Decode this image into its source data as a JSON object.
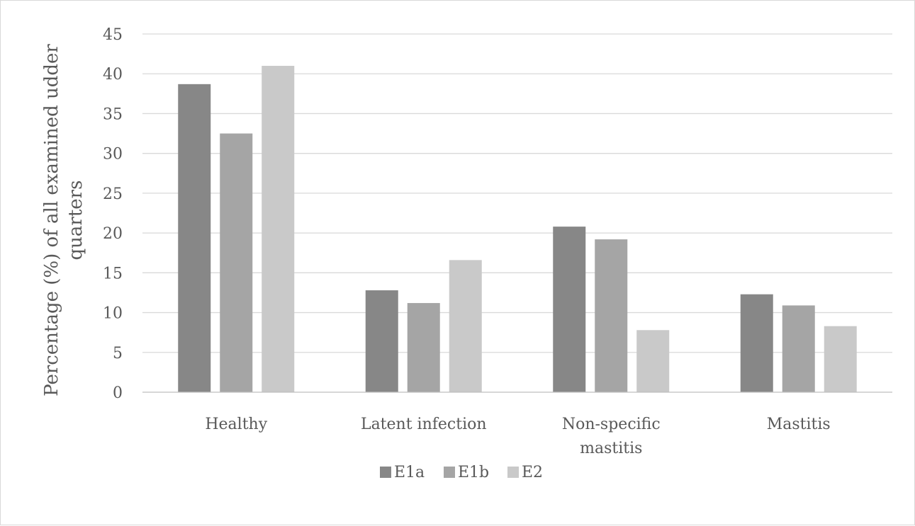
{
  "chart_data": {
    "type": "bar",
    "title": "",
    "xlabel": "",
    "ylabel_lines": [
      "Percentage (%) of all examined udder",
      "quarters"
    ],
    "ylim": [
      0,
      45
    ],
    "yticks": [
      0,
      5,
      10,
      15,
      20,
      25,
      30,
      35,
      40,
      45
    ],
    "grid": true,
    "legend_position": "bottom",
    "categories": [
      [
        "Healthy"
      ],
      [
        "Latent infection"
      ],
      [
        "Non-specific",
        "mastitis"
      ],
      [
        "Mastitis"
      ]
    ],
    "series": [
      {
        "name": "E1a",
        "color": "#878787",
        "values": [
          38.7,
          12.8,
          20.8,
          12.3
        ]
      },
      {
        "name": "E1b",
        "color": "#a5a5a5",
        "values": [
          32.5,
          11.2,
          19.2,
          10.9
        ]
      },
      {
        "name": "E2",
        "color": "#c9c9c9",
        "values": [
          41.0,
          16.6,
          7.8,
          8.3
        ]
      }
    ]
  }
}
